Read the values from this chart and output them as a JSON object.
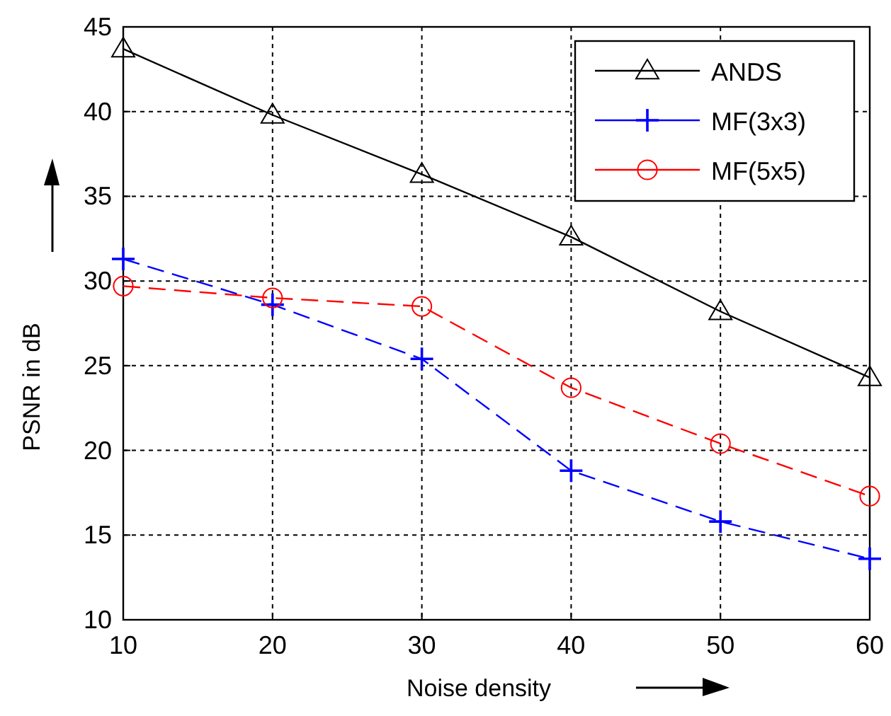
{
  "chart_data": {
    "type": "line",
    "xlabel": "Noise density",
    "ylabel": "PSNR in dB",
    "x": [
      10,
      20,
      30,
      40,
      50,
      60
    ],
    "xlim": [
      10,
      60
    ],
    "xticks": [
      10,
      20,
      30,
      40,
      50,
      60
    ],
    "ylim": [
      10,
      45
    ],
    "yticks": [
      10,
      15,
      20,
      25,
      30,
      35,
      40,
      45
    ],
    "grid": true,
    "legend": "top right",
    "series": [
      {
        "name": "ANDS",
        "color": "#000000",
        "marker": "triangle",
        "line_style": "solid",
        "values": [
          43.7,
          39.8,
          36.3,
          32.6,
          28.2,
          24.3
        ]
      },
      {
        "name": "MF(3x3)",
        "color": "#0000ff",
        "marker": "cross",
        "line_style": "dashed",
        "values": [
          31.3,
          28.6,
          25.4,
          18.8,
          15.8,
          13.6
        ]
      },
      {
        "name": "MF(5x5)",
        "color": "#ff0000",
        "marker": "circle",
        "line_style": "dashed",
        "values": [
          29.7,
          29.0,
          28.5,
          23.7,
          20.4,
          17.3
        ]
      }
    ]
  }
}
